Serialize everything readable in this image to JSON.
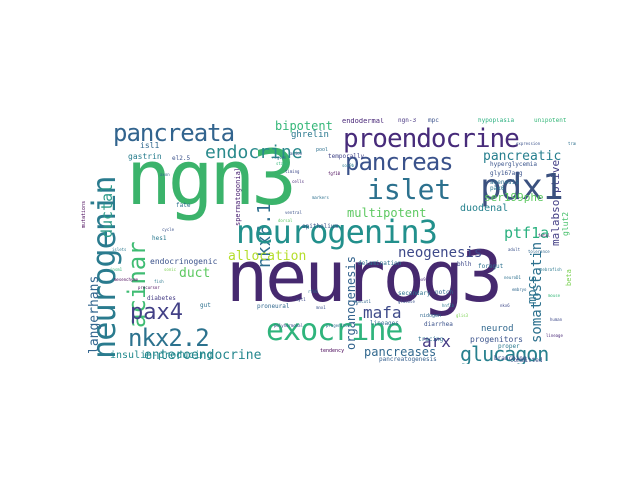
{
  "words": {
    "neurog3": {
      "text": "neurog3",
      "color": "#46296f"
    },
    "ngn3": {
      "text": "ngn3",
      "color": "#3bb36b"
    },
    "neurogenin": {
      "text": "neurogenin",
      "color": "#2a7b8e"
    },
    "neurogenin3": {
      "text": "neurogenin3",
      "color": "#22908c"
    },
    "pdx1": {
      "text": "pdx1",
      "color": "#3b517f"
    },
    "exocrine": {
      "text": "exocrine",
      "color": "#2fb47c"
    },
    "proendocrine": {
      "text": "proendocrine",
      "color": "#472b7a"
    },
    "pancreata": {
      "text": "pancreata",
      "color": "#32648e"
    },
    "pancreas": {
      "text": "pancreas",
      "color": "#3a528b"
    },
    "islet": {
      "text": "islet",
      "color": "#2c718e"
    },
    "endocrine": {
      "text": "endocrine",
      "color": "#2a8a8c"
    },
    "acinar": {
      "text": "acinar",
      "color": "#3fbc73"
    },
    "nkx61": {
      "text": "nkx6.1",
      "color": "#2e6e8e"
    },
    "nkx22": {
      "text": "nkx2.2",
      "color": "#2c728e"
    },
    "pax4": {
      "text": "pax4",
      "color": "#424086"
    },
    "glucagon": {
      "text": "glucagon",
      "color": "#27808e"
    },
    "somatostatin": {
      "text": "somatostatin",
      "color": "#2d718e"
    },
    "enteroendocrine": {
      "text": "enteroendocrine",
      "color": "#24878e"
    },
    "insulin_producing": {
      "text": "insulin-producing",
      "color": "#238a8d"
    },
    "langerhans": {
      "text": "langerhans",
      "color": "#32658e"
    },
    "ductal": {
      "text": "ductal",
      "color": "#2d9a88"
    },
    "duct": {
      "text": "duct",
      "color": "#5ec962"
    },
    "allocation": {
      "text": "allocation",
      "color": "#b5de2b"
    },
    "neogenesis": {
      "text": "neogenesis",
      "color": "#3e4989"
    },
    "multipotent": {
      "text": "multipotent",
      "color": "#5ec962"
    },
    "pancreatic": {
      "text": "pancreatic",
      "color": "#277f8e"
    },
    "bipotent": {
      "text": "bipotent",
      "color": "#35b779"
    },
    "ghrelin": {
      "text": "ghrelin",
      "color": "#2a788e"
    },
    "mafa": {
      "text": "mafa",
      "color": "#3e4a89"
    },
    "arx": {
      "text": "arx",
      "color": "#443983"
    },
    "ptf1a": {
      "text": "ptf1a",
      "color": "#2ab07f"
    },
    "pancreases": {
      "text": "pancreases",
      "color": "#31688e"
    },
    "duodenal": {
      "text": "duodenal",
      "color": "#26828e"
    },
    "ser199phe": {
      "text": "ser199phe",
      "color": "#5ec962"
    },
    "malabsorptive": {
      "text": "malabsorptive",
      "color": "#433e85"
    },
    "organogenesis": {
      "text": "organogenesis",
      "color": "#33638d"
    },
    "mpcs": {
      "text": "mpcs",
      "color": "#2c728e"
    },
    "neurod": {
      "text": "neurod",
      "color": "#31688e"
    },
    "progenitors": {
      "text": "progenitors",
      "color": "#3a528b"
    },
    "endodermal": {
      "text": "endodermal",
      "color": "#482677"
    },
    "ngn_3": {
      "text": "ngn-3",
      "color": "#463480"
    },
    "unipotent": {
      "text": "unipotent",
      "color": "#35b779"
    },
    "endocrinogenic": {
      "text": "endocrinogenic",
      "color": "#3b528b"
    },
    "isl1": {
      "text": "isl1",
      "color": "#31688e"
    },
    "gastrin": {
      "text": "gastrin",
      "color": "#287d8e"
    },
    "hypoplasia": {
      "text": "hypoplasia",
      "color": "#29af7f"
    },
    "hyperglycemia": {
      "text": "hyperglycemia",
      "color": "#3a548c"
    },
    "delamination": {
      "text": "delamination",
      "color": "#2c728e"
    },
    "pancreatogenesis": {
      "text": "pancreatogenesis",
      "color": "#355f8d"
    },
    "diarrhea": {
      "text": "diarrhea",
      "color": "#3b528b"
    },
    "lineages": {
      "text": "lineages",
      "color": "#2f6c8e"
    },
    "committed": {
      "text": "committed",
      "color": "#3b528b"
    },
    "tracing": {
      "text": "tracing",
      "color": "#2d708e"
    },
    "bhlh": {
      "text": "bhlh",
      "color": "#3e4989"
    },
    "diabetes": {
      "text": "diabetes",
      "color": "#443b84"
    },
    "spermatogonial": {
      "text": "spermatogonial",
      "color": "#481f70"
    },
    "epithelium": {
      "text": "epithelium",
      "color": "#39568c"
    },
    "gut": {
      "text": "gut",
      "color": "#2d708e"
    },
    "proneural": {
      "text": "proneural",
      "color": "#31688e"
    },
    "pax6": {
      "text": "pax6",
      "color": "#2a788e"
    },
    "gly167arg": {
      "text": "gly167arg",
      "color": "#3a528b"
    },
    "foregut": {
      "text": "foregut",
      "color": "#2d708e"
    },
    "glut2": {
      "text": "glut2",
      "color": "#4ac16d"
    },
    "hes1": {
      "text": "hes1",
      "color": "#2a788e"
    },
    "fate": {
      "text": "fate",
      "color": "#2d708e"
    },
    "el25": {
      "text": "el2.5",
      "color": "#3b528b"
    },
    "secondary": {
      "text": "secondary",
      "color": "#2c728e"
    },
    "temporally": {
      "text": "temporally",
      "color": "#414487"
    },
    "notch": {
      "text": "notch",
      "color": "#31688e"
    },
    "beta": {
      "text": "beta",
      "color": "#7ad151"
    },
    "proper": {
      "text": "proper",
      "color": "#2a788e"
    },
    "branching": {
      "text": "branching",
      "color": "#3e4989"
    },
    "agenesis": {
      "text": "agenesis",
      "color": "#2d708e"
    },
    "tendency": {
      "text": "tendency",
      "color": "#440154"
    },
    "nidogen": {
      "text": "nidogen",
      "color": "#31688e"
    },
    "pool": {
      "text": "pool",
      "color": "#2d708e"
    },
    "mpc": {
      "text": "mpc",
      "color": "#3b528b"
    },
    "mutations": {
      "text": "mutations",
      "color": "#440154"
    }
  },
  "small": {
    "s1": "anion",
    "s2": "sox9b",
    "s3": "fgf10",
    "s4": "region",
    "s5": "stage",
    "s6": "timing",
    "s7": "cells",
    "s8": "markers",
    "s9": "ventral",
    "s10": "dorsal",
    "s11": "axon",
    "s12": "cycle",
    "s13": "islets",
    "s14": "mesenchyme",
    "s15": "insm1",
    "s16": "myt1",
    "s17": "rfx6",
    "s18": "mnx1",
    "s19": "onecut1",
    "s20": "sox9",
    "s21": "hnf1b",
    "s22": "glis3",
    "s23": "nkx6",
    "s24": "neuroD1",
    "s25": "adult",
    "s26": "embryo",
    "s27": "fetal",
    "s28": "zebrafish",
    "s29": "mouse",
    "s30": "human",
    "s31": "lineage",
    "s32": "transient",
    "s33": "expression",
    "s34": "tolerance",
    "s35": "precursor",
    "s36": "fish",
    "s37": "sonic",
    "s38": "polyhormonal",
    "s39": "progenitor",
    "s40": "glucose"
  }
}
